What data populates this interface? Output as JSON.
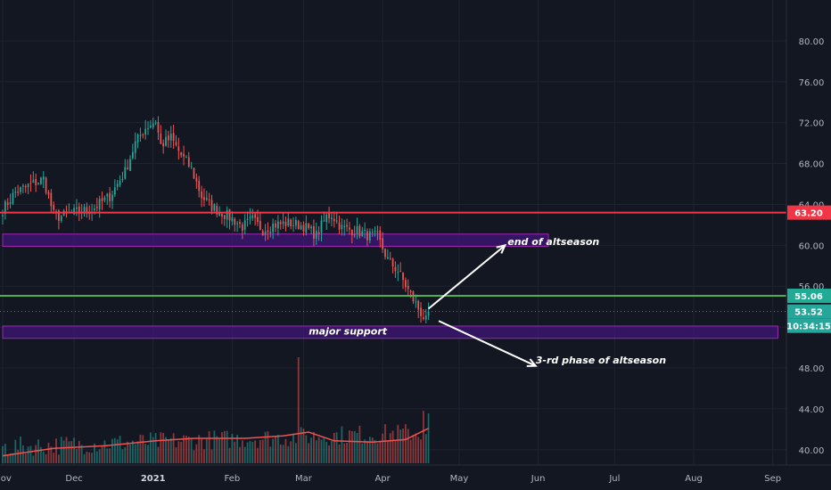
{
  "chart_data": {
    "type": "candlestick",
    "y_range": [
      38.5,
      84
    ],
    "y_ticks": [
      40,
      44,
      48,
      52,
      56,
      60,
      64,
      68,
      72,
      76,
      80
    ],
    "y_tick_labels": [
      "40.00",
      "44.00",
      "48.00",
      "",
      "56.00",
      "60.00",
      "64.00",
      "68.00",
      "72.00",
      "76.00",
      "80.00"
    ],
    "x_ticks": [
      {
        "label": "Nov",
        "bar": 0
      },
      {
        "label": "Dec",
        "bar": 28
      },
      {
        "label": "2021",
        "bar": 59,
        "bold": true
      },
      {
        "label": "Feb",
        "bar": 90
      },
      {
        "label": "Mar",
        "bar": 118
      },
      {
        "label": "Apr",
        "bar": 149
      },
      {
        "label": "May",
        "bar": 179
      },
      {
        "label": "Jun",
        "bar": 210
      },
      {
        "label": "Jul",
        "bar": 240
      },
      {
        "label": "Aug",
        "bar": 271
      },
      {
        "label": "Sep",
        "bar": 302
      }
    ],
    "price_path": [
      [
        0,
        63.5
      ],
      [
        5,
        65.2
      ],
      [
        10,
        65.8
      ],
      [
        16,
        66.5
      ],
      [
        20,
        63.0
      ],
      [
        22,
        62.8
      ],
      [
        28,
        63.2
      ],
      [
        35,
        63.5
      ],
      [
        42,
        64.8
      ],
      [
        48,
        67.2
      ],
      [
        52,
        70.0
      ],
      [
        56,
        71.5
      ],
      [
        60,
        72.2
      ],
      [
        62,
        69.8
      ],
      [
        66,
        70.5
      ],
      [
        70,
        68.8
      ],
      [
        74,
        67.5
      ],
      [
        78,
        64.8
      ],
      [
        82,
        63.8
      ],
      [
        86,
        63.2
      ],
      [
        90,
        62.6
      ],
      [
        94,
        61.8
      ],
      [
        98,
        62.5
      ],
      [
        102,
        61.5
      ],
      [
        106,
        62.0
      ],
      [
        112,
        62.2
      ],
      [
        118,
        61.9
      ],
      [
        123,
        61.0
      ],
      [
        127,
        62.8
      ],
      [
        129,
        63.0
      ],
      [
        133,
        61.7
      ],
      [
        139,
        61.4
      ],
      [
        143,
        61.0
      ],
      [
        147,
        60.8
      ],
      [
        151,
        58.6
      ],
      [
        155,
        57.5
      ],
      [
        159,
        55.6
      ],
      [
        163,
        53.8
      ],
      [
        166,
        52.6
      ],
      [
        167,
        53.52
      ]
    ],
    "price_scale_points": [
      {
        "value": 63.2,
        "label": "63.20",
        "color": "#f23645"
      },
      {
        "value": 55.06,
        "label": "55.06",
        "color": "#22ab94"
      },
      {
        "value": 53.52,
        "label": "53.52",
        "color": "#26a69a"
      }
    ],
    "countdown": "10:34:15",
    "horizontal_lines": [
      {
        "value": 63.2,
        "color": "#f23645"
      },
      {
        "value": 55.06,
        "color": "#4caf50"
      }
    ],
    "zones": [
      {
        "from": 59.9,
        "to": 61.1,
        "start_bar": 0,
        "end_bar": 214
      },
      {
        "from": 50.9,
        "to": 52.1,
        "start_bar": 0,
        "end_bar": 304
      }
    ],
    "arrows": [
      {
        "from": [
          167,
          53.8
        ],
        "to": [
          197,
          60.0
        ]
      },
      {
        "from": [
          171,
          52.6
        ],
        "to": [
          209,
          48.2
        ]
      }
    ],
    "annotations": [
      {
        "text": "end of altseason",
        "bar": 198,
        "value": 60.4
      },
      {
        "text": "major support",
        "bar": 120,
        "value": 51.6
      },
      {
        "text": "3-rd phase of altseason",
        "bar": 209,
        "value": 48.8
      }
    ],
    "volume_markers": [
      {
        "bar": 116,
        "level": 0.85
      },
      {
        "bar": 165,
        "level": 0.42
      },
      {
        "bar": 167,
        "level": 0.4
      }
    ],
    "volume_ma": [
      [
        0,
        0.06
      ],
      [
        20,
        0.12
      ],
      [
        40,
        0.14
      ],
      [
        60,
        0.18
      ],
      [
        75,
        0.2
      ],
      [
        95,
        0.2
      ],
      [
        110,
        0.22
      ],
      [
        120,
        0.25
      ],
      [
        130,
        0.18
      ],
      [
        145,
        0.17
      ],
      [
        158,
        0.19
      ],
      [
        167,
        0.28
      ]
    ],
    "colors": {
      "up": "#26a69a",
      "down": "#ef5350",
      "zone_fill": "#4a148c",
      "zone_stroke": "#9c27b0",
      "background": "#131722",
      "grid": "#1f2330"
    }
  }
}
